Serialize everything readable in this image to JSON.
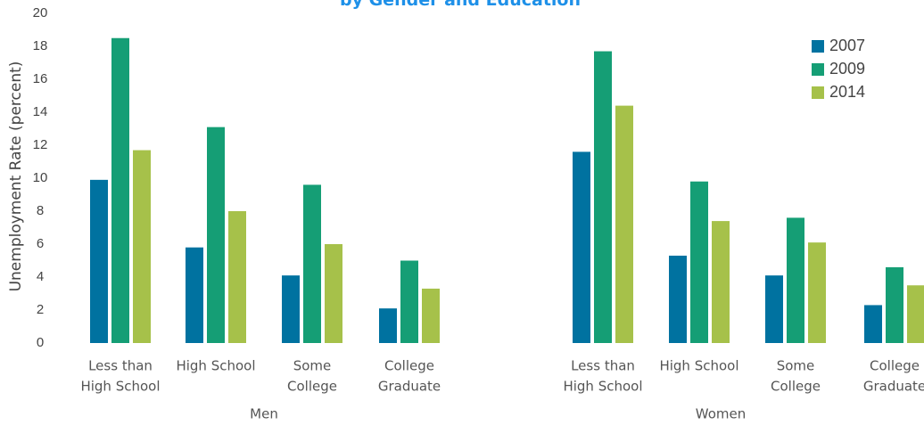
{
  "chart_data": {
    "type": "bar",
    "title": "by Gender and Education",
    "ylabel": "Unemployment  Rate (percent)",
    "ylim": [
      0,
      20
    ],
    "yticks": [
      "0",
      "2",
      "4",
      "6",
      "8",
      "10",
      "12",
      "14",
      "16",
      "18",
      "20"
    ],
    "groups": [
      {
        "label": "Men",
        "categories": [
          [
            "Less than",
            "High School"
          ],
          [
            "High School"
          ],
          [
            "Some",
            "College"
          ],
          [
            "College",
            "Graduate"
          ]
        ]
      },
      {
        "label": "Women",
        "categories": [
          [
            "Less than",
            "High School"
          ],
          [
            "High School"
          ],
          [
            "Some",
            "College"
          ],
          [
            "College",
            "Graduate"
          ]
        ]
      }
    ],
    "series": [
      {
        "name": "2007",
        "color": "#0072A0",
        "values": [
          9.9,
          5.8,
          4.1,
          2.1,
          11.6,
          5.3,
          4.1,
          2.3
        ]
      },
      {
        "name": "2009",
        "color": "#159E75",
        "values": [
          18.5,
          13.1,
          9.6,
          5.0,
          17.7,
          9.8,
          7.6,
          4.6
        ]
      },
      {
        "name": "2014",
        "color": "#A6C14A",
        "values": [
          11.7,
          8.0,
          6.0,
          3.3,
          14.4,
          7.4,
          6.1,
          3.5
        ]
      }
    ],
    "legend_position": "top-right",
    "title_color": "#1E90E8",
    "grid": false
  }
}
